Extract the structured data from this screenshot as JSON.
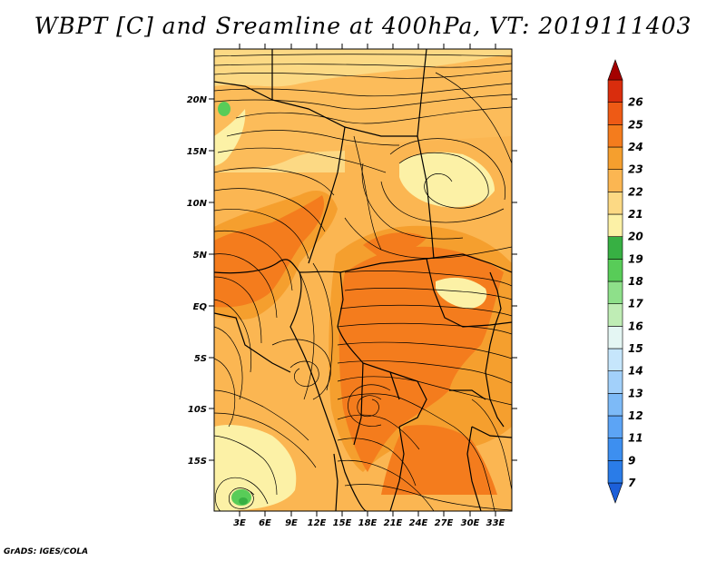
{
  "title": "WBPT [C] and Sreamline at 400hPa, VT: 2019111403",
  "footer": "GrADS: IGES/COLA",
  "map": {
    "lat_labels": [
      "20N",
      "15N",
      "10N",
      "5N",
      "EQ",
      "5S",
      "10S",
      "15S"
    ],
    "lon_labels": [
      "3E",
      "6E",
      "9E",
      "12E",
      "15E",
      "18E",
      "21E",
      "24E",
      "27E",
      "30E",
      "33E"
    ]
  },
  "colorbar": {
    "labels": [
      "7",
      "9",
      "11",
      "12",
      "13",
      "14",
      "15",
      "16",
      "17",
      "18",
      "19",
      "20",
      "21",
      "22",
      "23",
      "24",
      "25",
      "26"
    ],
    "colors": [
      "#1c5fd9",
      "#2a7ce8",
      "#3d8ff0",
      "#5ca4f5",
      "#7dbaf7",
      "#a2d0fa",
      "#c6e6fc",
      "#e4f6f3",
      "#bfedb5",
      "#8ee08a",
      "#58cc58",
      "#37b043",
      "#fcf1a6",
      "#fcd984",
      "#fbb652",
      "#f59f2e",
      "#f47c1d",
      "#ee5a15",
      "#d92d0d",
      "#a40000"
    ]
  }
}
